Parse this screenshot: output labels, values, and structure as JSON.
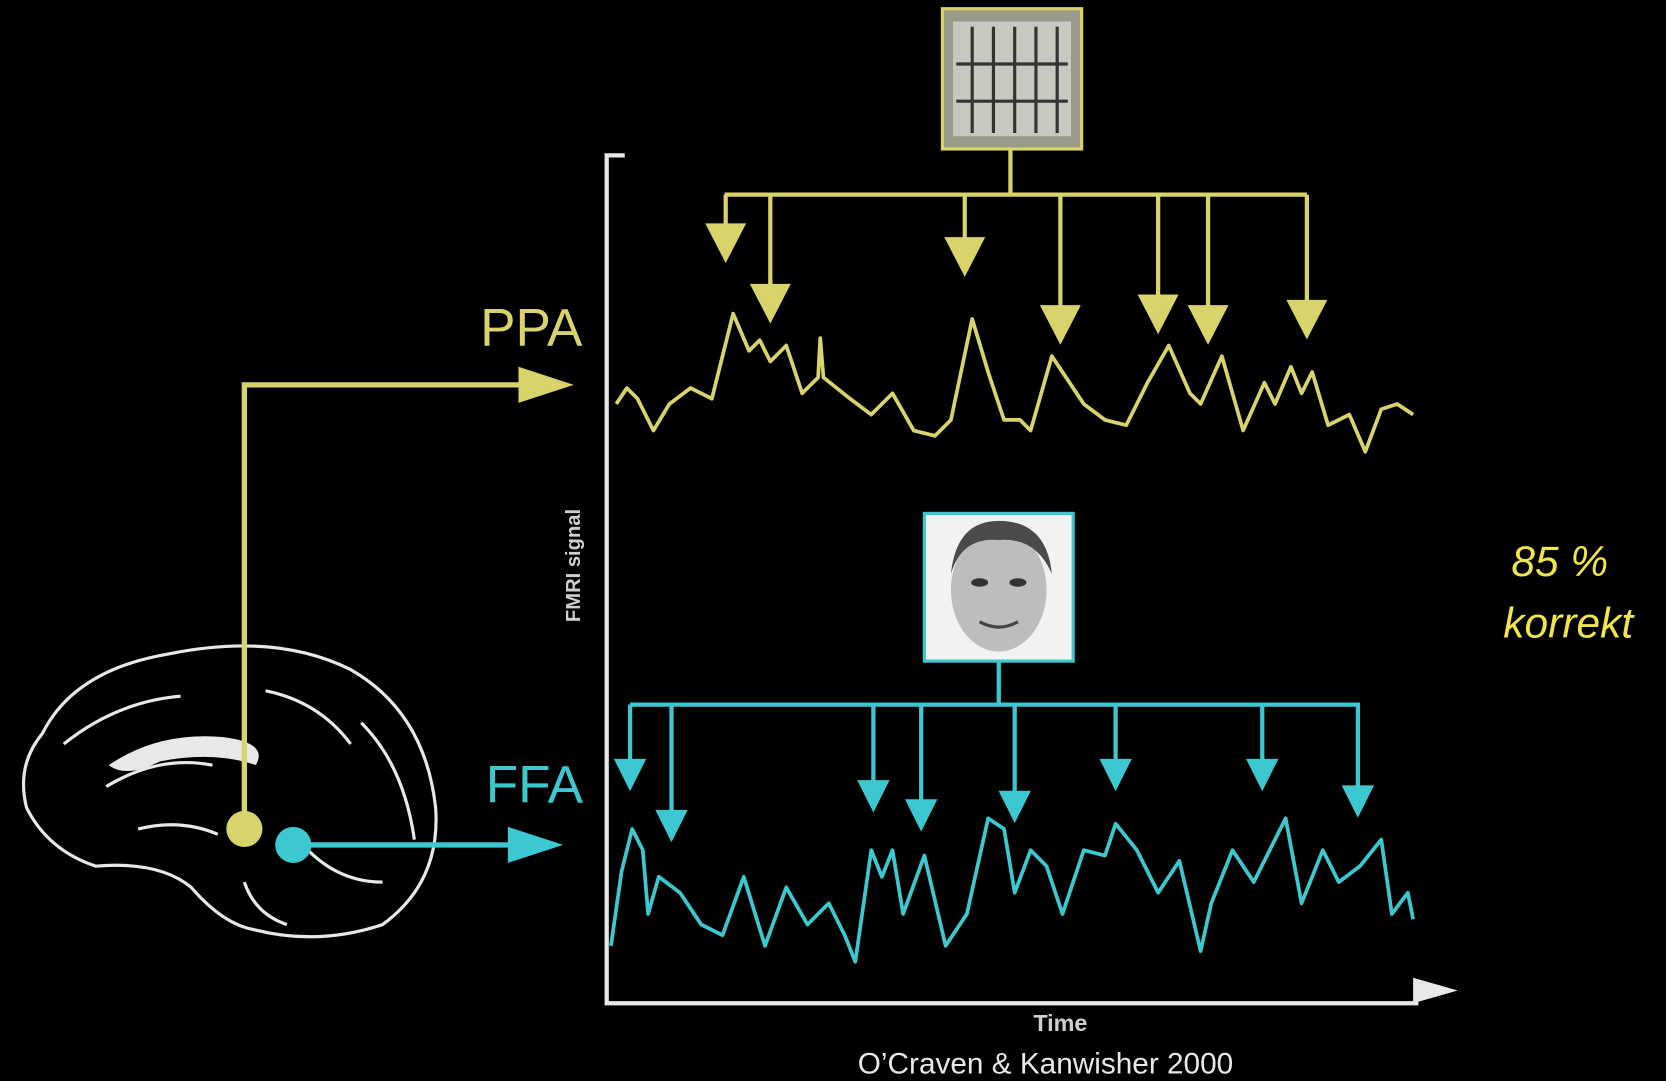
{
  "labels": {
    "ppa": "PPA",
    "ffa": "FFA",
    "y_axis": "FMRI signal",
    "x_axis": "Time",
    "citation": "O’Craven & Kanwisher 2000",
    "result_value": "85 %",
    "result_word": "korrekt"
  }
}
